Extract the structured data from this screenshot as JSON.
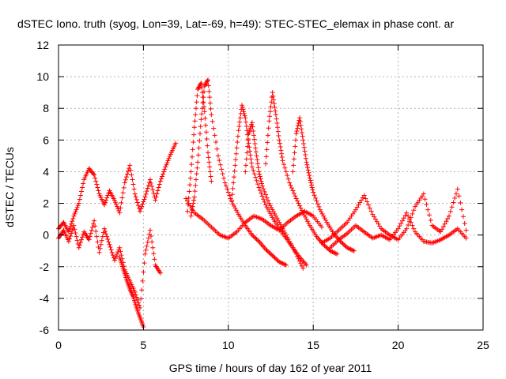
{
  "chart_data": {
    "type": "scatter",
    "title": "dSTEC Iono. truth (syog, Lon=39, Lat=-69, h=49): STEC-STEC_elemax in phase cont. ar",
    "xlabel": "GPS time / hours of day 162 of year 2011",
    "ylabel": "dSTEC  / TECUs",
    "xlim": [
      0,
      25
    ],
    "ylim": [
      -6,
      12
    ],
    "xticks": [
      0,
      5,
      10,
      15,
      20,
      25
    ],
    "yticks": [
      -6,
      -4,
      -2,
      0,
      2,
      4,
      6,
      8,
      10,
      12
    ],
    "xtick_labels": [
      "0",
      "5",
      "10",
      "15",
      "20",
      "25"
    ],
    "ytick_labels": [
      "-6",
      "-4",
      "-2",
      "0",
      "2",
      "4",
      "6",
      "8",
      "10",
      "12"
    ],
    "grid": true,
    "marker": "+",
    "color": "#ff0000",
    "series": [
      {
        "x": [
          0,
          0.3,
          0.6,
          0.9,
          1.2,
          1.5,
          1.8,
          2.1,
          2.4,
          2.7,
          3.0,
          3.3,
          3.6,
          3.9,
          4.2,
          4.5,
          4.8,
          5.1,
          5.4,
          5.7,
          6.0,
          6.3,
          6.6,
          6.9
        ],
        "y": [
          0.4,
          0.8,
          0.2,
          1.2,
          2.0,
          3.5,
          4.2,
          3.8,
          2.6,
          1.9,
          2.8,
          2.2,
          1.4,
          3.3,
          4.4,
          2.6,
          1.5,
          2.4,
          3.5,
          2.2,
          3.4,
          4.3,
          5.1,
          5.8
        ]
      },
      {
        "x": [
          0,
          0.3,
          0.6,
          0.9,
          1.2,
          1.5,
          1.8,
          2.1,
          2.4,
          2.7,
          3.0,
          3.3,
          3.6,
          3.9,
          4.2,
          4.5,
          4.8,
          5.1,
          5.4,
          5.7,
          6.0
        ],
        "y": [
          -0.2,
          0.3,
          -0.4,
          0.6,
          -0.8,
          0.2,
          -0.3,
          0.9,
          -1.1,
          0.4,
          -0.6,
          -1.6,
          -0.8,
          -2.2,
          -2.9,
          -3.6,
          -4.6,
          -1.2,
          0.3,
          -1.9,
          -2.4
        ]
      },
      {
        "x": [
          3.6,
          3.8,
          4.0,
          4.2,
          4.4,
          4.6,
          4.8,
          5.0
        ],
        "y": [
          -1.4,
          -2.1,
          -2.8,
          -3.4,
          -3.9,
          -4.6,
          -5.2,
          -5.8
        ]
      },
      {
        "x": [
          7.8,
          8.0,
          8.2,
          8.4,
          8.6,
          8.8,
          9.0,
          9.4,
          9.8,
          10.2,
          10.6,
          11.0,
          11.4,
          11.8,
          12.2,
          12.6,
          13.0,
          13.4
        ],
        "y": [
          1.2,
          2.4,
          4.6,
          7.3,
          9.4,
          9.8,
          7.6,
          5.0,
          3.3,
          2.1,
          1.3,
          0.6,
          0.0,
          -0.4,
          -0.9,
          -1.3,
          -1.7,
          -1.9
        ]
      },
      {
        "x": [
          7.6,
          7.8,
          8.0,
          8.2,
          8.4,
          8.6,
          8.8,
          9.0
        ],
        "y": [
          1.5,
          4.0,
          6.8,
          9.2,
          9.6,
          7.8,
          5.2,
          3.4
        ]
      },
      {
        "x": [
          10.2,
          10.4,
          10.6,
          10.8,
          11.0,
          11.2,
          11.4,
          11.8,
          12.2,
          12.6,
          13.0,
          13.4,
          13.8,
          14.2,
          14.6
        ],
        "y": [
          2.2,
          4.4,
          6.6,
          8.2,
          7.4,
          5.8,
          4.3,
          3.0,
          1.9,
          1.1,
          0.4,
          -0.2,
          -0.8,
          -1.4,
          -1.9
        ]
      },
      {
        "x": [
          11.0,
          11.2,
          11.4,
          11.6,
          11.8,
          12.0,
          12.4,
          12.8,
          13.2,
          13.6,
          14.0,
          14.4
        ],
        "y": [
          4.0,
          6.4,
          7.1,
          5.5,
          4.0,
          3.1,
          2.0,
          1.2,
          0.4,
          -0.4,
          -1.2,
          -2.1
        ]
      },
      {
        "x": [
          12.2,
          12.4,
          12.6,
          12.8,
          13.0,
          13.2,
          13.6,
          14.0,
          14.4,
          14.8,
          15.2,
          15.6,
          16.0,
          16.4
        ],
        "y": [
          4.5,
          7.2,
          9.0,
          7.6,
          6.0,
          4.7,
          3.3,
          2.3,
          1.4,
          0.6,
          -0.1,
          -0.6,
          -1.0,
          -1.2
        ]
      },
      {
        "x": [
          13.8,
          14.0,
          14.2,
          14.4,
          14.6,
          14.8,
          15.0,
          15.4,
          15.8,
          16.2,
          16.6,
          17.0,
          17.4
        ],
        "y": [
          4.0,
          6.4,
          7.4,
          6.0,
          4.6,
          3.6,
          2.7,
          1.6,
          0.8,
          0.1,
          -0.4,
          -0.8,
          -1.0
        ]
      },
      {
        "x": [
          7.5,
          8.0,
          8.5,
          9.0,
          9.5,
          10.0,
          10.5,
          11.0,
          11.5,
          12.0,
          12.5,
          13.0,
          13.5,
          14.0,
          14.5,
          15.0,
          15.5
        ],
        "y": [
          2.3,
          1.4,
          1.0,
          0.5,
          0.0,
          -0.2,
          0.2,
          0.8,
          1.2,
          1.0,
          0.6,
          0.3,
          0.8,
          1.2,
          1.5,
          1.2,
          0.5
        ]
      },
      {
        "x": [
          15.5,
          16.0,
          16.5,
          17.0,
          17.5,
          18.0,
          18.5,
          19.0,
          19.5,
          20.0,
          20.5,
          21.0,
          21.5,
          22.0,
          22.5,
          23.0,
          23.5,
          24.0
        ],
        "y": [
          -0.5,
          -0.2,
          0.3,
          0.8,
          1.6,
          2.5,
          1.3,
          0.4,
          0.0,
          -0.3,
          0.4,
          1.8,
          2.6,
          0.6,
          0.2,
          1.2,
          2.9,
          0.3
        ]
      },
      {
        "x": [
          16.0,
          16.5,
          17.0,
          17.5,
          18.0,
          18.5,
          19.0,
          19.5,
          20.0,
          20.5,
          21.0,
          21.5,
          22.0,
          22.5,
          23.0,
          23.5,
          24.0
        ],
        "y": [
          -0.8,
          -0.3,
          0.1,
          0.6,
          0.2,
          -0.2,
          0.0,
          -0.3,
          0.4,
          1.4,
          0.2,
          -0.4,
          -0.5,
          -0.3,
          0.0,
          0.4,
          -0.2
        ]
      }
    ]
  }
}
